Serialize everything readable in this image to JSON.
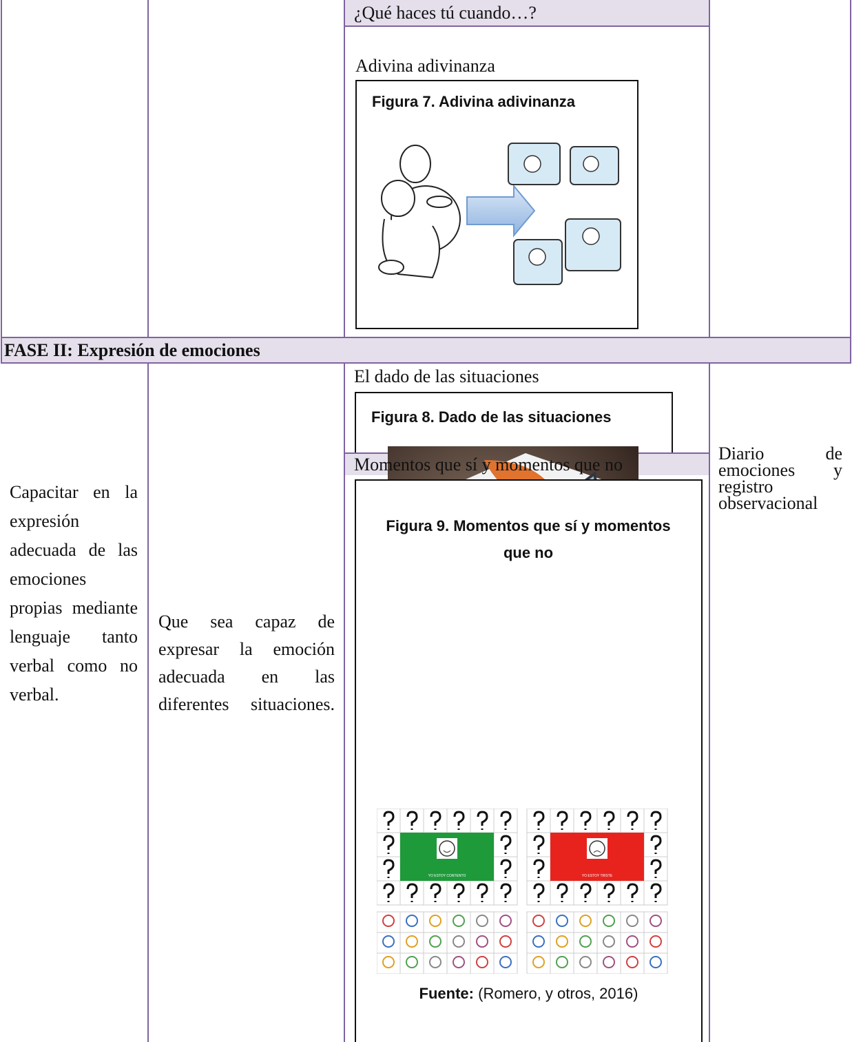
{
  "table": {
    "activity_header": "¿Qué haces tú cuando…?",
    "activity_1": {
      "title": "Adivina adivinanza",
      "figure_caption": "Figura 7. Adivina adivinanza"
    },
    "phase": "FASE II: Expresión de emociones",
    "objective": "Capacitar en la expresión adecuada de las emociones propias mediante lenguaje tanto verbal como no verbal.",
    "goal": "Que sea capaz de expresar la emoción adecuada en las diferentes situaciones.",
    "evaluation": "Diario de emociones y registro observacional",
    "activity_2": {
      "title": "El dado de las situaciones",
      "figure_caption": "Figura 8. Dado de las situaciones"
    },
    "activity_3": {
      "title": "Momentos que sí y momentos que no",
      "figure_caption": "Figura 9. Momentos que sí y momentos que no",
      "board_labels": [
        "YO ESTOY CONTENTO",
        "YO ESTOY TRISTE"
      ],
      "source_label": "Fuente:",
      "source": "(Romero, y otros, 2016)"
    }
  }
}
